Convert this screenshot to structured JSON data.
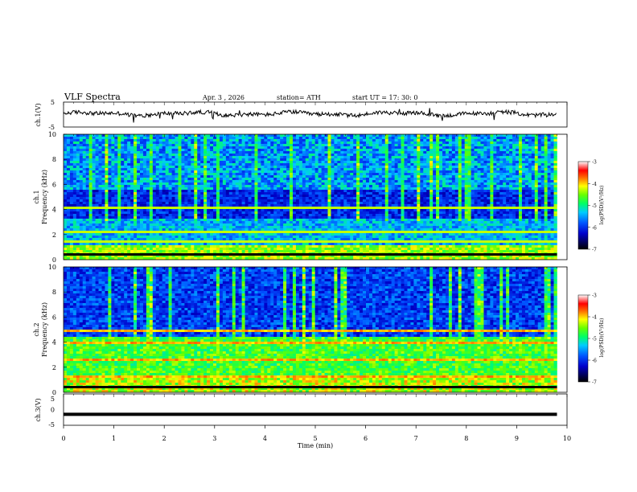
{
  "header": {
    "title": "VLF  Spectra",
    "date": "Apr. 3  , 2026",
    "station": "station= ATH",
    "start_ut": "start  UT  =   17: 30: 0"
  },
  "chart_data": [
    {
      "id": "ch1-waveform",
      "type": "line",
      "title": "",
      "xlabel": "",
      "ylabel": "ch.1(V)",
      "xlim": [
        0,
        10
      ],
      "ylim": [
        -5,
        5
      ],
      "yticks": [
        "5",
        "-5"
      ],
      "description_of_series": "dense oscillating waveform near 0 V",
      "series": [
        {
          "values": [
            0.2,
            0.4,
            0.6,
            0.3,
            0.1,
            0.0,
            -0.1,
            -0.2,
            0.1,
            0.3,
            0.5,
            0.4,
            0.2,
            0.0,
            0.2,
            0.3,
            0.1,
            -0.3,
            -0.1,
            0.2,
            0.4,
            0.6,
            0.5,
            0.3,
            0.2,
            0.1,
            0.3,
            0.4
          ]
        }
      ]
    },
    {
      "id": "ch1-spectrogram",
      "type": "heatmap",
      "ylabel": "ch.1\nFrequency (kHz)",
      "xlim": [
        0,
        10
      ],
      "ylim": [
        0,
        10
      ],
      "yticks": [
        "0",
        "2",
        "4",
        "6",
        "8",
        "10"
      ],
      "colorbar": {
        "label": "log(PSD)(V²/Hz)",
        "ticks": [
          "-3",
          "-4",
          "-5",
          "-6",
          "-7"
        ],
        "range": [
          -7,
          -3
        ]
      },
      "colors": {
        "low": "#000000",
        "mid_low": "#0000ff",
        "mid": "#00ff66",
        "mid_high": "#ffff00",
        "high": "#ff0000",
        "top": "#ffffff"
      }
    },
    {
      "id": "ch2-spectrogram",
      "type": "heatmap",
      "ylabel": "ch.2\nFrequency (kHz)",
      "xlim": [
        0,
        10
      ],
      "ylim": [
        0,
        10
      ],
      "yticks": [
        "0",
        "2",
        "4",
        "6",
        "8",
        "10"
      ],
      "colorbar": {
        "label": "log(PSD)(V²/Hz)",
        "ticks": [
          "-3",
          "-4",
          "-5",
          "-6",
          "-7"
        ],
        "range": [
          -7,
          -3
        ]
      }
    },
    {
      "id": "ch3-waveform",
      "type": "line",
      "xlabel": "Time  (min)",
      "ylabel": "ch.3(V)",
      "xlim": [
        0,
        10
      ],
      "ylim": [
        -5,
        5
      ],
      "yticks": [
        "5",
        "0",
        "-5"
      ],
      "series": [
        {
          "values": [
            -1.5,
            -1.5,
            -1.5,
            -1.5,
            -1.5,
            -1.5,
            -1.5,
            -1.5,
            -1.5,
            -1.5
          ]
        }
      ]
    }
  ],
  "x_axis": {
    "ticks": [
      "0",
      "1",
      "2",
      "3",
      "4",
      "5",
      "6",
      "7",
      "8",
      "9",
      "10"
    ],
    "label": "Time  (min)"
  }
}
